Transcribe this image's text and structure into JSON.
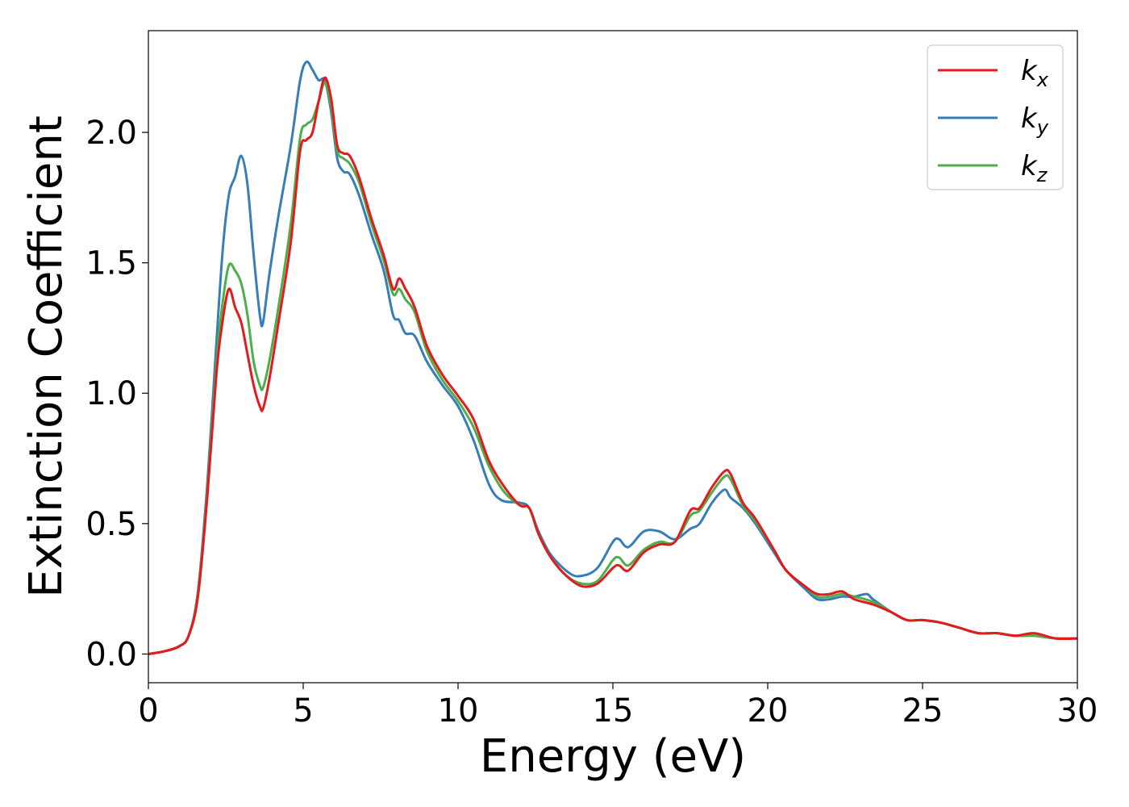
{
  "chart_data": {
    "type": "line",
    "title": "",
    "xlabel": "Energy (eV)",
    "ylabel": "Extinction Coefficient",
    "xlim": [
      0,
      30
    ],
    "ylim": [
      -0.11,
      2.39
    ],
    "xticks": [
      0,
      5,
      10,
      15,
      20,
      25,
      30
    ],
    "xtick_labels": [
      "0",
      "5",
      "10",
      "15",
      "20",
      "25",
      "30"
    ],
    "yticks": [
      0.0,
      0.5,
      1.0,
      1.5,
      2.0
    ],
    "ytick_labels": [
      "0.0",
      "0.5",
      "1.0",
      "1.5",
      "2.0"
    ],
    "grid": false,
    "legend_position": "top-right",
    "series": [
      {
        "name": "k",
        "subscript": "x",
        "color": "#e41a1c",
        "points": [
          [
            0,
            0.0
          ],
          [
            0.5,
            0.01
          ],
          [
            1.0,
            0.03
          ],
          [
            1.3,
            0.07
          ],
          [
            1.6,
            0.22
          ],
          [
            1.9,
            0.6
          ],
          [
            2.2,
            1.08
          ],
          [
            2.4,
            1.28
          ],
          [
            2.6,
            1.4
          ],
          [
            2.8,
            1.33
          ],
          [
            3.0,
            1.27
          ],
          [
            3.2,
            1.15
          ],
          [
            3.4,
            1.03
          ],
          [
            3.6,
            0.95
          ],
          [
            3.7,
            0.94
          ],
          [
            3.9,
            1.05
          ],
          [
            4.2,
            1.27
          ],
          [
            4.6,
            1.58
          ],
          [
            4.9,
            1.93
          ],
          [
            5.1,
            1.97
          ],
          [
            5.3,
            2.0
          ],
          [
            5.5,
            2.12
          ],
          [
            5.7,
            2.21
          ],
          [
            5.9,
            2.13
          ],
          [
            6.1,
            1.95
          ],
          [
            6.3,
            1.92
          ],
          [
            6.5,
            1.91
          ],
          [
            6.8,
            1.83
          ],
          [
            7.2,
            1.67
          ],
          [
            7.6,
            1.53
          ],
          [
            7.9,
            1.4
          ],
          [
            8.1,
            1.44
          ],
          [
            8.3,
            1.4
          ],
          [
            8.6,
            1.33
          ],
          [
            9.0,
            1.18
          ],
          [
            9.5,
            1.07
          ],
          [
            10.0,
            0.99
          ],
          [
            10.5,
            0.9
          ],
          [
            11.0,
            0.74
          ],
          [
            11.5,
            0.64
          ],
          [
            12.0,
            0.57
          ],
          [
            12.3,
            0.56
          ],
          [
            12.6,
            0.46
          ],
          [
            13.0,
            0.37
          ],
          [
            13.5,
            0.3
          ],
          [
            14.0,
            0.26
          ],
          [
            14.5,
            0.27
          ],
          [
            15.0,
            0.33
          ],
          [
            15.2,
            0.34
          ],
          [
            15.5,
            0.32
          ],
          [
            16.0,
            0.39
          ],
          [
            16.5,
            0.42
          ],
          [
            17.0,
            0.43
          ],
          [
            17.5,
            0.55
          ],
          [
            17.8,
            0.56
          ],
          [
            18.2,
            0.64
          ],
          [
            18.6,
            0.7
          ],
          [
            18.8,
            0.69
          ],
          [
            19.2,
            0.58
          ],
          [
            19.6,
            0.52
          ],
          [
            20.2,
            0.4
          ],
          [
            20.6,
            0.32
          ],
          [
            21.2,
            0.26
          ],
          [
            21.6,
            0.23
          ],
          [
            22.0,
            0.23
          ],
          [
            22.4,
            0.24
          ],
          [
            22.8,
            0.21
          ],
          [
            23.4,
            0.19
          ],
          [
            24.0,
            0.16
          ],
          [
            24.5,
            0.13
          ],
          [
            25.0,
            0.13
          ],
          [
            25.6,
            0.12
          ],
          [
            26.2,
            0.1
          ],
          [
            26.8,
            0.08
          ],
          [
            27.4,
            0.08
          ],
          [
            28.0,
            0.07
          ],
          [
            28.6,
            0.08
          ],
          [
            29.3,
            0.06
          ],
          [
            30.0,
            0.06
          ]
        ]
      },
      {
        "name": "k",
        "subscript": "y",
        "color": "#377eb8",
        "points": [
          [
            0,
            0.0
          ],
          [
            0.5,
            0.01
          ],
          [
            1.0,
            0.03
          ],
          [
            1.3,
            0.07
          ],
          [
            1.6,
            0.24
          ],
          [
            1.9,
            0.65
          ],
          [
            2.2,
            1.2
          ],
          [
            2.4,
            1.55
          ],
          [
            2.6,
            1.76
          ],
          [
            2.8,
            1.83
          ],
          [
            3.0,
            1.91
          ],
          [
            3.2,
            1.8
          ],
          [
            3.4,
            1.53
          ],
          [
            3.6,
            1.3
          ],
          [
            3.7,
            1.27
          ],
          [
            3.9,
            1.45
          ],
          [
            4.2,
            1.68
          ],
          [
            4.6,
            1.95
          ],
          [
            4.9,
            2.2
          ],
          [
            5.1,
            2.27
          ],
          [
            5.3,
            2.24
          ],
          [
            5.5,
            2.2
          ],
          [
            5.7,
            2.2
          ],
          [
            5.9,
            2.08
          ],
          [
            6.1,
            1.9
          ],
          [
            6.3,
            1.85
          ],
          [
            6.5,
            1.84
          ],
          [
            6.8,
            1.76
          ],
          [
            7.2,
            1.61
          ],
          [
            7.6,
            1.47
          ],
          [
            7.9,
            1.3
          ],
          [
            8.1,
            1.28
          ],
          [
            8.3,
            1.23
          ],
          [
            8.6,
            1.22
          ],
          [
            9.0,
            1.12
          ],
          [
            9.5,
            1.03
          ],
          [
            10.0,
            0.95
          ],
          [
            10.5,
            0.82
          ],
          [
            11.0,
            0.65
          ],
          [
            11.4,
            0.59
          ],
          [
            12.0,
            0.58
          ],
          [
            12.3,
            0.56
          ],
          [
            12.6,
            0.47
          ],
          [
            13.0,
            0.38
          ],
          [
            13.6,
            0.31
          ],
          [
            14.0,
            0.3
          ],
          [
            14.5,
            0.33
          ],
          [
            15.0,
            0.43
          ],
          [
            15.2,
            0.44
          ],
          [
            15.5,
            0.41
          ],
          [
            16.0,
            0.47
          ],
          [
            16.5,
            0.47
          ],
          [
            17.0,
            0.44
          ],
          [
            17.5,
            0.48
          ],
          [
            17.8,
            0.5
          ],
          [
            18.2,
            0.58
          ],
          [
            18.6,
            0.63
          ],
          [
            18.8,
            0.6
          ],
          [
            19.2,
            0.56
          ],
          [
            19.6,
            0.5
          ],
          [
            20.2,
            0.39
          ],
          [
            20.6,
            0.32
          ],
          [
            21.2,
            0.25
          ],
          [
            21.6,
            0.21
          ],
          [
            22.0,
            0.21
          ],
          [
            22.4,
            0.22
          ],
          [
            22.8,
            0.22
          ],
          [
            23.2,
            0.23
          ],
          [
            23.4,
            0.21
          ],
          [
            24.0,
            0.16
          ],
          [
            24.5,
            0.13
          ],
          [
            25.0,
            0.13
          ],
          [
            25.6,
            0.12
          ],
          [
            26.2,
            0.1
          ],
          [
            26.8,
            0.08
          ],
          [
            27.4,
            0.08
          ],
          [
            28.0,
            0.07
          ],
          [
            28.6,
            0.07
          ],
          [
            29.3,
            0.06
          ],
          [
            30.0,
            0.06
          ]
        ]
      },
      {
        "name": "k",
        "subscript": "z",
        "color": "#4daf4a",
        "points": [
          [
            0,
            0.0
          ],
          [
            0.5,
            0.01
          ],
          [
            1.0,
            0.03
          ],
          [
            1.3,
            0.07
          ],
          [
            1.6,
            0.23
          ],
          [
            1.9,
            0.62
          ],
          [
            2.2,
            1.12
          ],
          [
            2.4,
            1.35
          ],
          [
            2.6,
            1.49
          ],
          [
            2.8,
            1.47
          ],
          [
            3.0,
            1.42
          ],
          [
            3.2,
            1.3
          ],
          [
            3.4,
            1.12
          ],
          [
            3.6,
            1.03
          ],
          [
            3.7,
            1.02
          ],
          [
            3.9,
            1.12
          ],
          [
            4.2,
            1.33
          ],
          [
            4.6,
            1.65
          ],
          [
            4.9,
            1.98
          ],
          [
            5.1,
            2.03
          ],
          [
            5.3,
            2.05
          ],
          [
            5.5,
            2.12
          ],
          [
            5.7,
            2.19
          ],
          [
            5.9,
            2.1
          ],
          [
            6.1,
            1.93
          ],
          [
            6.3,
            1.9
          ],
          [
            6.5,
            1.88
          ],
          [
            6.8,
            1.81
          ],
          [
            7.2,
            1.65
          ],
          [
            7.6,
            1.51
          ],
          [
            7.9,
            1.38
          ],
          [
            8.1,
            1.4
          ],
          [
            8.3,
            1.36
          ],
          [
            8.6,
            1.31
          ],
          [
            9.0,
            1.16
          ],
          [
            9.5,
            1.05
          ],
          [
            10.0,
            0.97
          ],
          [
            10.5,
            0.87
          ],
          [
            11.0,
            0.72
          ],
          [
            11.5,
            0.62
          ],
          [
            12.0,
            0.57
          ],
          [
            12.3,
            0.56
          ],
          [
            12.6,
            0.46
          ],
          [
            13.0,
            0.37
          ],
          [
            13.5,
            0.3
          ],
          [
            14.0,
            0.27
          ],
          [
            14.5,
            0.28
          ],
          [
            15.0,
            0.36
          ],
          [
            15.2,
            0.37
          ],
          [
            15.5,
            0.34
          ],
          [
            16.0,
            0.4
          ],
          [
            16.5,
            0.43
          ],
          [
            17.0,
            0.43
          ],
          [
            17.5,
            0.53
          ],
          [
            17.8,
            0.55
          ],
          [
            18.2,
            0.62
          ],
          [
            18.6,
            0.68
          ],
          [
            18.8,
            0.67
          ],
          [
            19.2,
            0.57
          ],
          [
            19.6,
            0.51
          ],
          [
            20.2,
            0.4
          ],
          [
            20.6,
            0.32
          ],
          [
            21.2,
            0.26
          ],
          [
            21.6,
            0.22
          ],
          [
            22.0,
            0.22
          ],
          [
            22.4,
            0.23
          ],
          [
            22.8,
            0.22
          ],
          [
            23.4,
            0.2
          ],
          [
            24.0,
            0.16
          ],
          [
            24.5,
            0.13
          ],
          [
            25.0,
            0.13
          ],
          [
            25.6,
            0.12
          ],
          [
            26.2,
            0.1
          ],
          [
            26.8,
            0.08
          ],
          [
            27.4,
            0.08
          ],
          [
            28.0,
            0.07
          ],
          [
            28.6,
            0.07
          ],
          [
            29.3,
            0.06
          ],
          [
            30.0,
            0.06
          ]
        ]
      }
    ]
  }
}
